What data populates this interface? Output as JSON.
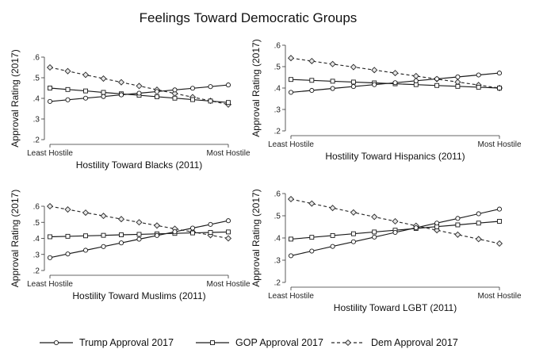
{
  "figure": {
    "title": "Feelings Toward Democratic Groups"
  },
  "legend": [
    {
      "series": "trump",
      "label": "Trump Approval 2017",
      "marker": "circle",
      "dash": "solid"
    },
    {
      "series": "gop",
      "label": "GOP Approval 2017",
      "marker": "square",
      "dash": "solid"
    },
    {
      "series": "dem",
      "label": "Dem Approval 2017",
      "marker": "diamond",
      "dash": "dashed"
    }
  ],
  "chart_data": [
    {
      "type": "line",
      "xlabel": "Hostility Toward Blacks (2011)",
      "ylabel": "Approval Rating (2017)",
      "x_tick_labels": [
        "Least Hostile",
        "Most Hostile"
      ],
      "ylim": [
        0.2,
        0.6
      ],
      "yticks": [
        0.2,
        0.3,
        0.4,
        0.5,
        0.6
      ],
      "ytick_labels": [
        ".2",
        ".3",
        ".4",
        ".5",
        ".6"
      ],
      "x": [
        0,
        1,
        2,
        3,
        4,
        5,
        6,
        7,
        8,
        9,
        10
      ],
      "series": [
        {
          "name": "Trump Approval 2017",
          "values": [
            0.385,
            0.393,
            0.401,
            0.409,
            0.417,
            0.425,
            0.433,
            0.441,
            0.449,
            0.457,
            0.465
          ]
        },
        {
          "name": "GOP Approval 2017",
          "values": [
            0.45,
            0.443,
            0.436,
            0.429,
            0.422,
            0.415,
            0.408,
            0.401,
            0.394,
            0.387,
            0.38
          ]
        },
        {
          "name": "Dem Approval 2017",
          "values": [
            0.55,
            0.532,
            0.514,
            0.496,
            0.478,
            0.46,
            0.442,
            0.424,
            0.406,
            0.388,
            0.37
          ]
        }
      ]
    },
    {
      "type": "line",
      "xlabel": "Hostility Toward Hispanics (2011)",
      "ylabel": "Approval Rating (2017)",
      "x_tick_labels": [
        "Least Hostile",
        "Most Hostile"
      ],
      "ylim": [
        0.2,
        0.6
      ],
      "yticks": [
        0.2,
        0.3,
        0.4,
        0.5,
        0.6
      ],
      "ytick_labels": [
        ".2",
        ".3",
        ".4",
        ".5",
        ".6"
      ],
      "x": [
        0,
        1,
        2,
        3,
        4,
        5,
        6,
        7,
        8,
        9,
        10
      ],
      "series": [
        {
          "name": "Trump Approval 2017",
          "values": [
            0.38,
            0.389,
            0.398,
            0.407,
            0.416,
            0.425,
            0.434,
            0.443,
            0.452,
            0.461,
            0.47
          ]
        },
        {
          "name": "GOP Approval 2017",
          "values": [
            0.44,
            0.436,
            0.432,
            0.428,
            0.424,
            0.42,
            0.416,
            0.412,
            0.408,
            0.404,
            0.4
          ]
        },
        {
          "name": "Dem Approval 2017",
          "values": [
            0.54,
            0.526,
            0.512,
            0.498,
            0.484,
            0.47,
            0.456,
            0.442,
            0.428,
            0.414,
            0.4
          ]
        }
      ]
    },
    {
      "type": "line",
      "xlabel": "Hostility Toward Muslims (2011)",
      "ylabel": "Approval Rating (2017)",
      "x_tick_labels": [
        "Least Hostile",
        "Most Hostile"
      ],
      "ylim": [
        0.2,
        0.6
      ],
      "yticks": [
        0.2,
        0.3,
        0.4,
        0.5,
        0.6
      ],
      "ytick_labels": [
        ".2",
        ".3",
        ".4",
        ".5",
        ".6"
      ],
      "x": [
        0,
        1,
        2,
        3,
        4,
        5,
        6,
        7,
        8,
        9,
        10
      ],
      "series": [
        {
          "name": "Trump Approval 2017",
          "values": [
            0.28,
            0.303,
            0.326,
            0.349,
            0.372,
            0.395,
            0.418,
            0.441,
            0.464,
            0.487,
            0.51
          ]
        },
        {
          "name": "GOP Approval 2017",
          "values": [
            0.41,
            0.413,
            0.416,
            0.419,
            0.422,
            0.425,
            0.428,
            0.431,
            0.434,
            0.437,
            0.44
          ]
        },
        {
          "name": "Dem Approval 2017",
          "values": [
            0.6,
            0.58,
            0.56,
            0.54,
            0.52,
            0.5,
            0.48,
            0.46,
            0.44,
            0.42,
            0.4
          ]
        }
      ]
    },
    {
      "type": "line",
      "xlabel": "Hostility Toward LGBT (2011)",
      "ylabel": "Approval Rating (2017)",
      "x_tick_labels": [
        "Least Hostile",
        "Most Hostile"
      ],
      "ylim": [
        0.2,
        0.6
      ],
      "yticks": [
        0.2,
        0.3,
        0.4,
        0.5,
        0.6
      ],
      "ytick_labels": [
        ".2",
        ".3",
        ".4",
        ".5",
        ".6"
      ],
      "x": [
        0,
        1,
        2,
        3,
        4,
        5,
        6,
        7,
        8,
        9,
        10
      ],
      "series": [
        {
          "name": "Trump Approval 2017",
          "values": [
            0.32,
            0.341,
            0.362,
            0.383,
            0.404,
            0.425,
            0.446,
            0.467,
            0.488,
            0.509,
            0.53
          ]
        },
        {
          "name": "GOP Approval 2017",
          "values": [
            0.395,
            0.403,
            0.411,
            0.419,
            0.427,
            0.435,
            0.443,
            0.451,
            0.459,
            0.467,
            0.475
          ]
        },
        {
          "name": "Dem Approval 2017",
          "values": [
            0.575,
            0.555,
            0.535,
            0.515,
            0.495,
            0.475,
            0.455,
            0.435,
            0.415,
            0.395,
            0.375
          ]
        }
      ]
    }
  ]
}
